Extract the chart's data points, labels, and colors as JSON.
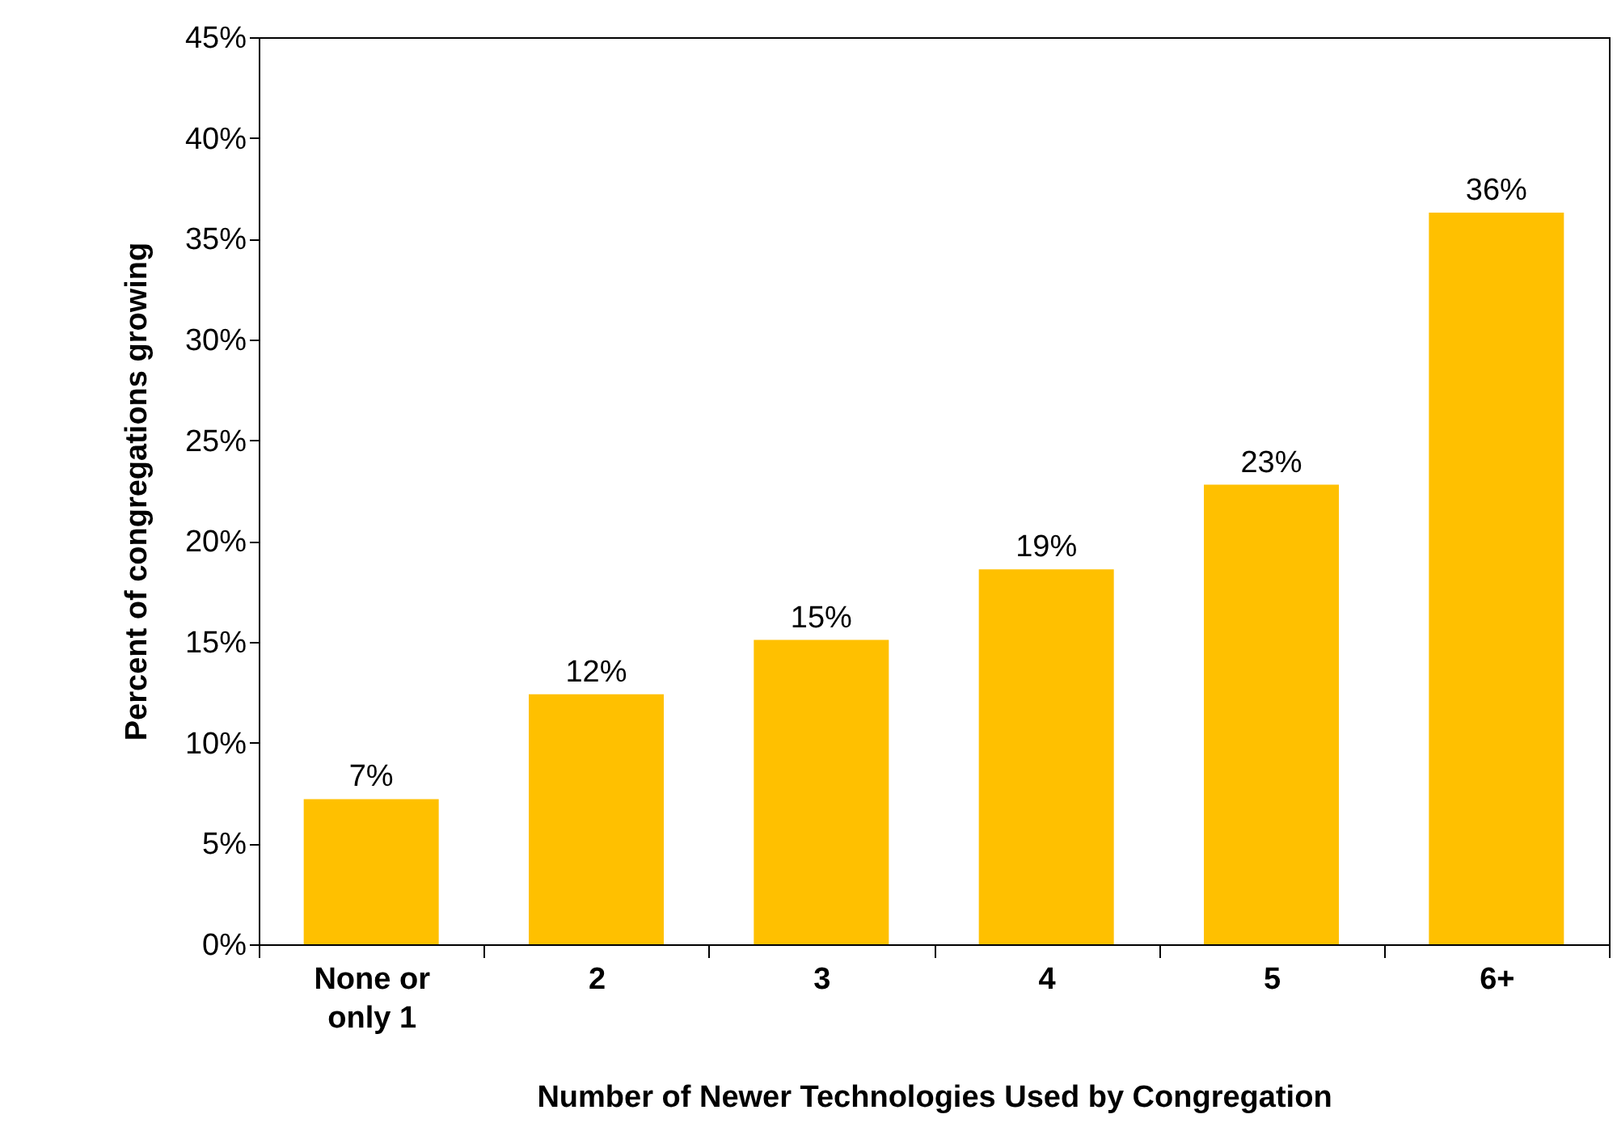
{
  "chart_data": {
    "type": "bar",
    "xlabel": "Number of Newer Technologies Used by Congregation",
    "ylabel": "Percent of congregations growing",
    "categories": [
      "None or only 1",
      "2",
      "3",
      "4",
      "5",
      "6+"
    ],
    "values": [
      7.2,
      12.4,
      15.1,
      18.6,
      22.8,
      36.3
    ],
    "value_labels": [
      "7%",
      "12%",
      "15%",
      "19%",
      "23%",
      "36%"
    ],
    "color": "#ffc000",
    "ylim": [
      0,
      45
    ],
    "yticks": [
      {
        "value": 0,
        "label": "0%"
      },
      {
        "value": 5,
        "label": "5%"
      },
      {
        "value": 10,
        "label": "10%"
      },
      {
        "value": 15,
        "label": "15%"
      },
      {
        "value": 20,
        "label": "20%"
      },
      {
        "value": 25,
        "label": "25%"
      },
      {
        "value": 30,
        "label": "30%"
      },
      {
        "value": 35,
        "label": "35%"
      },
      {
        "value": 40,
        "label": "40%"
      },
      {
        "value": 45,
        "label": "45%"
      }
    ],
    "grid": false
  }
}
